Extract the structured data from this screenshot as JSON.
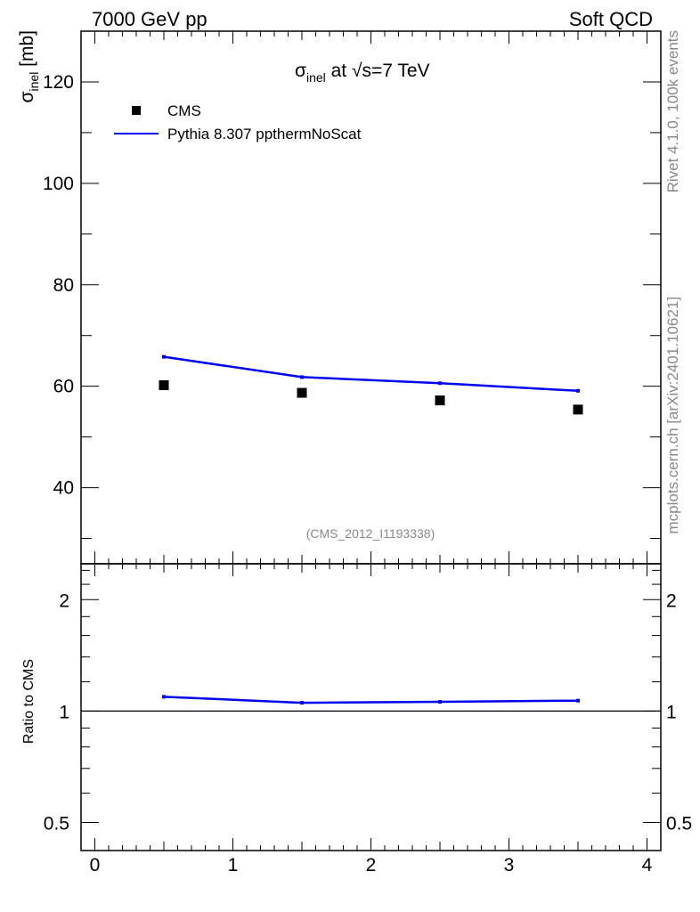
{
  "header": {
    "left": "7000 GeV pp",
    "right": "Soft QCD"
  },
  "side_text": {
    "top": "Rivet 4.1.0,  100k events",
    "bottom": "mcplots.cern.ch [arXiv:2401.10621]"
  },
  "chart_data": [
    {
      "type": "scatter",
      "panel": "main",
      "title_parts": {
        "symbol": "σ",
        "subscript": "inel",
        "text": " at √s=7 TeV"
      },
      "ylabel_parts": {
        "symbol": "σ",
        "subscript": "inel",
        "text": " [mb]"
      },
      "xlabel": "",
      "xlim": [
        -0.1,
        4.1
      ],
      "ylim": [
        25,
        130
      ],
      "yticks_major": [
        40,
        60,
        80,
        100,
        120
      ],
      "ytick_labels": [
        "40",
        "60",
        "80",
        "100",
        "120"
      ],
      "grid": false,
      "legend_position": "top-left",
      "watermark": "(CMS_2012_I1193338)",
      "series": [
        {
          "name": "CMS",
          "style": "black-square-markers",
          "color": "#000000",
          "x": [
            0.5,
            1.5,
            2.5,
            3.5
          ],
          "y": [
            60.2,
            58.7,
            57.2,
            55.4
          ]
        },
        {
          "name": "Pythia 8.307 ppthermNoScat",
          "style": "line",
          "color": "#0000ee",
          "x": [
            0.5,
            1.5,
            2.5,
            3.5
          ],
          "y": [
            65.8,
            61.8,
            60.6,
            59.1
          ]
        }
      ]
    },
    {
      "type": "line",
      "panel": "ratio",
      "ylabel": "Ratio to CMS",
      "xlim": [
        -0.1,
        4.1
      ],
      "ylim": [
        0.42,
        2.5
      ],
      "yscale": "log",
      "ytick_labels": [
        "0.5",
        "1",
        "2"
      ],
      "yticks_major": [
        0.5,
        1,
        2
      ],
      "xtick_labels": [
        "0",
        "1",
        "2",
        "3",
        "4"
      ],
      "xticks_major": [
        0,
        1,
        2,
        3,
        4
      ],
      "reference_line": 1,
      "series": [
        {
          "name": "Pythia 8.307 ppthermNoScat / CMS",
          "color": "#0000ee",
          "x": [
            0.5,
            1.5,
            2.5,
            3.5
          ],
          "y": [
            1.093,
            1.053,
            1.059,
            1.067
          ]
        }
      ]
    }
  ]
}
